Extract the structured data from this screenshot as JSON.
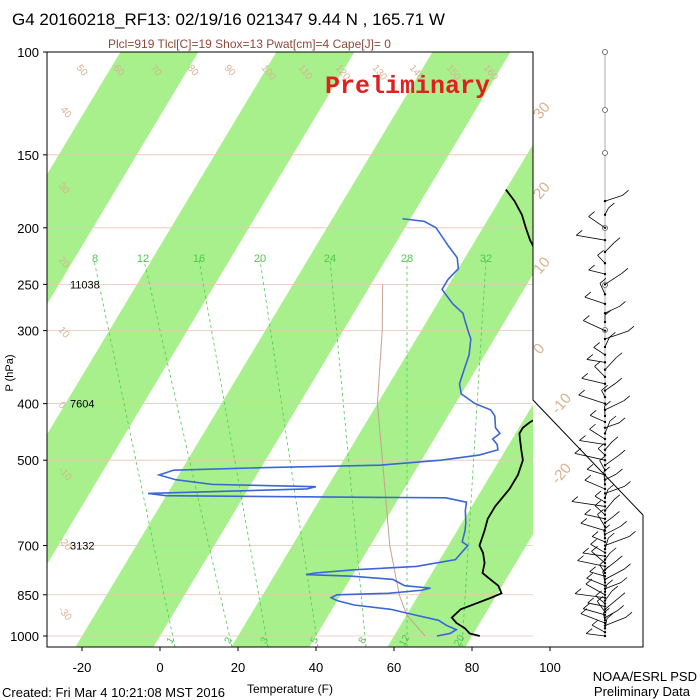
{
  "header": {
    "title": "G4 20160218_RF13: 02/19/16 021347   9.44 N , 165.71 W",
    "subtitle": "Plcl=919 Tlcl[C]=19 Shox=13 Pwat[cm]=4 Cape[J]= 0",
    "watermark": "Preliminary"
  },
  "footer": {
    "created": "Created: Fri Mar  4 10:21:08 MST 2016",
    "org": "NOAA/ESRL PSD",
    "status": "Preliminary Data"
  },
  "colors": {
    "band": "#a8f08c",
    "temperature": "#000000",
    "dewpoint": "#3a66d6",
    "isobar": "#e7c3b3",
    "isotherm_label": "#d8b090",
    "mixing_ratio": "#4ec84e",
    "wind": "#000000",
    "watermark": "#e02020",
    "subtitle": "#8b4a3c"
  },
  "chart_data": {
    "type": "skew-t",
    "xlabel": "Temperature (F)",
    "ylabel": "P (hPa)",
    "xlim_at_1000hPa": [
      -29,
      115
    ],
    "ylim": [
      1000,
      100
    ],
    "x_ticks": [
      "-20",
      "0",
      "20",
      "40",
      "60",
      "80",
      "100"
    ],
    "y_ticks": [
      "100",
      "150",
      "200",
      "250",
      "300",
      "400",
      "500",
      "700",
      "850",
      "1000"
    ],
    "height_labels": [
      {
        "p": 250,
        "label": "11038"
      },
      {
        "p": 400,
        "label": "7604"
      },
      {
        "p": 700,
        "label": "3132"
      }
    ],
    "mixing_ratio_top_labels": [
      "8",
      "12",
      "16",
      "20",
      "24",
      "28",
      "32"
    ],
    "mixing_ratio_bottom_labels": [
      "1",
      "2",
      "3",
      "5",
      "8",
      "12",
      "20"
    ],
    "isotherm_labels": [
      "50",
      "60",
      "70",
      "80",
      "90",
      "100",
      "110",
      "120",
      "130",
      "140",
      "150",
      "160",
      "40",
      "30",
      "20",
      "10",
      "0",
      "-10",
      "-20",
      "-30"
    ],
    "temperature_profile": [
      [
        1000,
        82
      ],
      [
        990,
        79
      ],
      [
        970,
        77
      ],
      [
        950,
        74
      ],
      [
        930,
        72
      ],
      [
        900,
        73
      ],
      [
        880,
        76
      ],
      [
        860,
        79
      ],
      [
        845,
        81
      ],
      [
        820,
        79
      ],
      [
        800,
        76
      ],
      [
        780,
        73
      ],
      [
        750,
        72
      ],
      [
        720,
        70
      ],
      [
        700,
        68
      ],
      [
        660,
        67
      ],
      [
        630,
        66
      ],
      [
        600,
        66
      ],
      [
        560,
        67
      ],
      [
        530,
        67
      ],
      [
        500,
        66
      ],
      [
        480,
        64
      ],
      [
        460,
        62
      ],
      [
        450,
        61
      ],
      [
        440,
        61
      ],
      [
        430,
        62
      ],
      [
        410,
        66
      ],
      [
        395,
        70
      ],
      [
        380,
        71
      ],
      [
        365,
        71
      ],
      [
        340,
        68
      ],
      [
        320,
        64
      ],
      [
        300,
        59
      ],
      [
        280,
        53
      ],
      [
        260,
        48
      ],
      [
        240,
        43
      ],
      [
        225,
        39
      ],
      [
        210,
        34
      ],
      [
        200,
        31
      ],
      [
        190,
        28
      ],
      [
        180,
        24
      ],
      [
        172,
        20
      ]
    ],
    "dewpoint_profile": [
      [
        1000,
        71
      ],
      [
        990,
        74
      ],
      [
        975,
        75
      ],
      [
        960,
        72
      ],
      [
        940,
        69
      ],
      [
        920,
        62
      ],
      [
        900,
        55
      ],
      [
        885,
        45
      ],
      [
        870,
        40
      ],
      [
        860,
        38
      ],
      [
        850,
        39
      ],
      [
        845,
        52
      ],
      [
        835,
        60
      ],
      [
        828,
        62
      ],
      [
        820,
        55
      ],
      [
        800,
        51
      ],
      [
        790,
        40
      ],
      [
        785,
        28
      ],
      [
        780,
        30
      ],
      [
        770,
        40
      ],
      [
        760,
        55
      ],
      [
        740,
        64
      ],
      [
        700,
        65
      ],
      [
        690,
        63
      ],
      [
        660,
        62
      ],
      [
        640,
        61
      ],
      [
        610,
        59
      ],
      [
        590,
        58
      ],
      [
        580,
        52
      ],
      [
        578,
        20
      ],
      [
        575,
        -20
      ],
      [
        570,
        -25
      ],
      [
        560,
        15
      ],
      [
        555,
        17
      ],
      [
        550,
        -10
      ],
      [
        540,
        -20
      ],
      [
        530,
        -25
      ],
      [
        520,
        -22
      ],
      [
        515,
        0
      ],
      [
        510,
        30
      ],
      [
        500,
        45
      ],
      [
        490,
        54
      ],
      [
        480,
        58
      ],
      [
        470,
        57
      ],
      [
        460,
        55
      ],
      [
        450,
        56
      ],
      [
        440,
        54
      ],
      [
        430,
        53
      ],
      [
        420,
        52
      ],
      [
        410,
        50
      ],
      [
        400,
        45
      ],
      [
        385,
        40
      ],
      [
        370,
        38
      ],
      [
        350,
        37
      ],
      [
        330,
        36
      ],
      [
        310,
        34
      ],
      [
        300,
        32
      ],
      [
        290,
        30
      ],
      [
        280,
        28
      ],
      [
        270,
        24
      ],
      [
        255,
        19
      ],
      [
        245,
        19
      ],
      [
        235,
        20
      ],
      [
        225,
        18
      ],
      [
        215,
        14
      ],
      [
        200,
        8
      ],
      [
        195,
        4
      ],
      [
        193,
        -2
      ]
    ],
    "parcel_path": [
      [
        1000,
        68
      ],
      [
        920,
        60
      ],
      [
        850,
        55
      ],
      [
        700,
        45
      ],
      [
        500,
        30
      ],
      [
        400,
        20
      ],
      [
        300,
        10
      ],
      [
        250,
        3
      ]
    ],
    "wind_levels": [
      1000,
      985,
      970,
      960,
      950,
      940,
      930,
      920,
      910,
      900,
      890,
      880,
      870,
      860,
      850,
      840,
      830,
      820,
      810,
      800,
      790,
      780,
      770,
      760,
      750,
      740,
      730,
      720,
      710,
      700,
      690,
      680,
      670,
      660,
      650,
      640,
      630,
      620,
      610,
      600,
      590,
      580,
      570,
      560,
      550,
      540,
      530,
      520,
      510,
      500,
      490,
      480,
      470,
      460,
      450,
      440,
      430,
      420,
      410,
      400,
      390,
      380,
      370,
      360,
      350,
      340,
      330,
      320,
      310,
      300,
      290,
      280,
      270,
      260,
      250,
      240,
      230,
      220,
      210,
      200,
      190,
      180
    ]
  }
}
